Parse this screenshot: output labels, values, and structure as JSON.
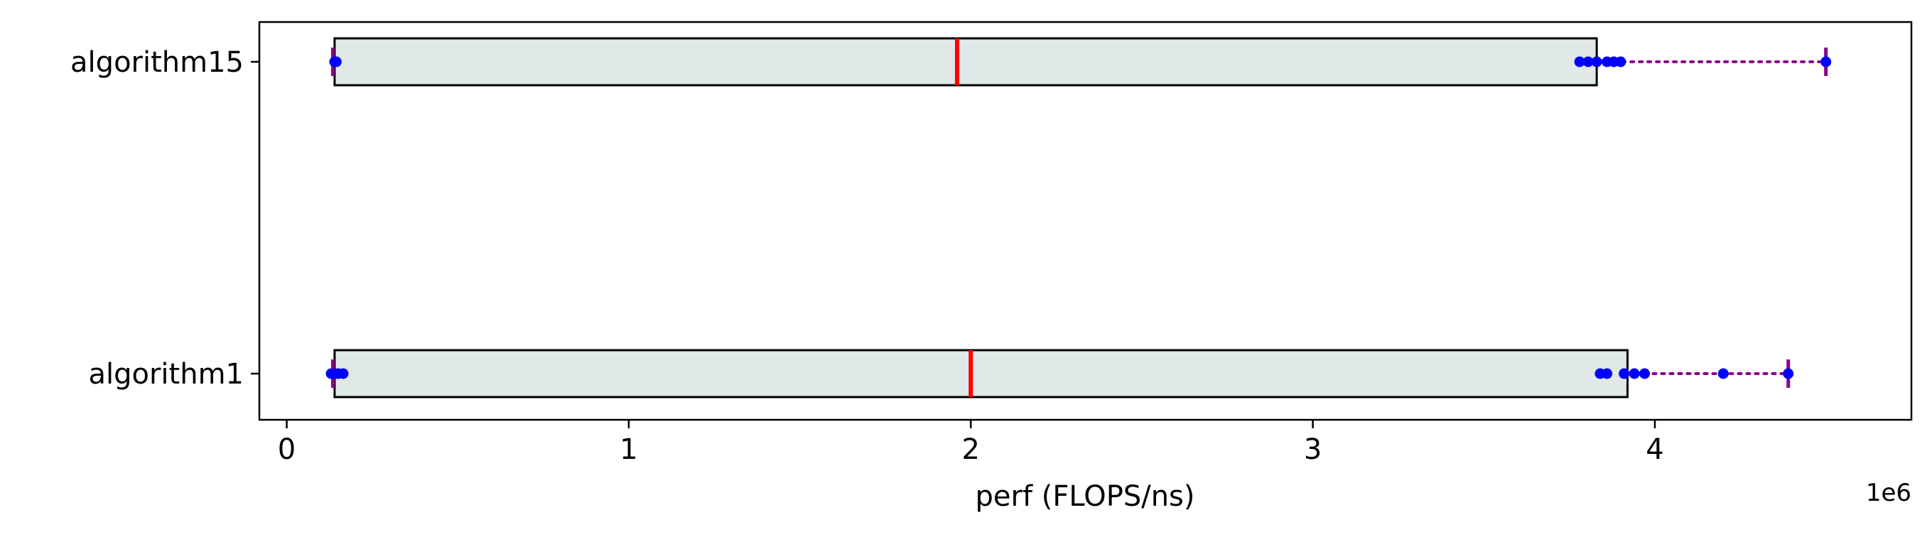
{
  "chart_data": {
    "type": "box",
    "orientation": "horizontal",
    "title": "",
    "xlabel": "perf (FLOPS/ns)",
    "ylabel": "",
    "x_offset_label": "1e6",
    "x_scale": 1000000,
    "xlim": [
      -80000,
      4750000
    ],
    "xticks": [
      0,
      1000000,
      2000000,
      3000000,
      4000000
    ],
    "xtick_labels": [
      "0",
      "1",
      "2",
      "3",
      "4"
    ],
    "grid": false,
    "legend": "none",
    "categories": [
      "algorithm15",
      "algorithm1"
    ],
    "boxes": [
      {
        "label": "algorithm15",
        "whisker_low": 135000,
        "q1": 140000,
        "median": 1960000,
        "q3": 3830000,
        "whisker_high": 4500000,
        "points": [
          140000,
          145000,
          3780000,
          3805000,
          3830000,
          3860000,
          3880000,
          3900000,
          4500000
        ]
      },
      {
        "label": "algorithm1",
        "whisker_low": 135000,
        "q1": 140000,
        "median": 2000000,
        "q3": 3920000,
        "whisker_high": 4390000,
        "points": [
          130000,
          150000,
          165000,
          3840000,
          3860000,
          3910000,
          3940000,
          3970000,
          4200000,
          4390000
        ]
      }
    ],
    "colors": {
      "box_fill": "#e1e8e8",
      "box_edge": "#000000",
      "median": "#ff0000",
      "whisker": "#8b008b",
      "points": "#0000ff"
    }
  }
}
